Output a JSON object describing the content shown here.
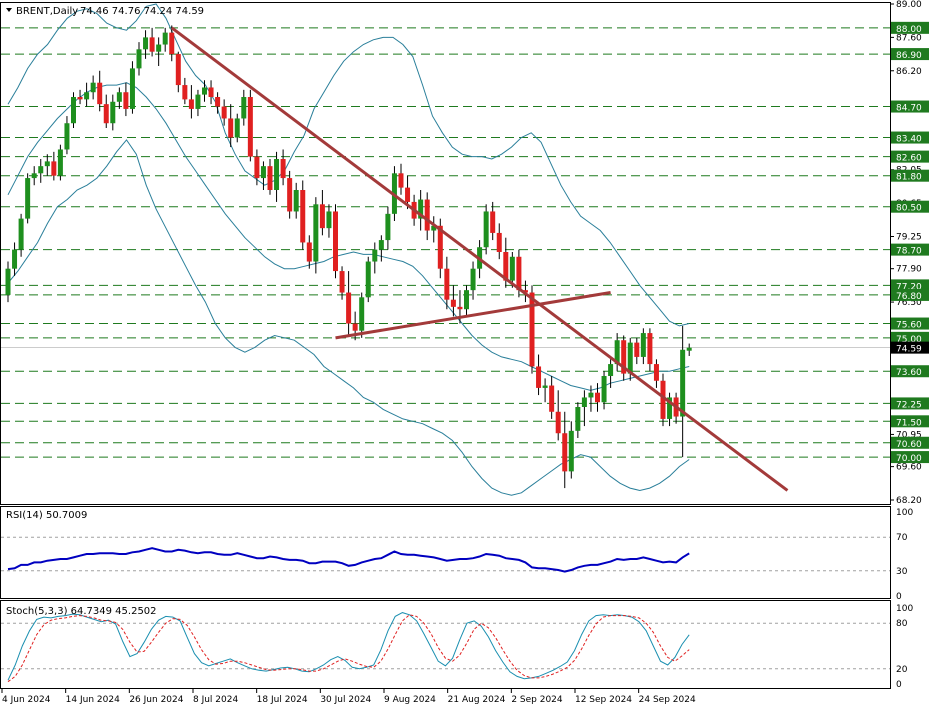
{
  "header": {
    "symbol": "BRENT,Daily",
    "ohlc": "74.46 74.76 74.24 74.59"
  },
  "rsi_label": "RSI(14) 50.7009",
  "stoch_label": "Stoch(5,3,3) 64.7349 45.2502",
  "colors": {
    "bull": "#1e8f1e",
    "bear": "#e02020",
    "bands": "#2a7f9a",
    "trend": "#a33a3a",
    "rsi": "#0000c0",
    "stoch_main": "#1a8fb0",
    "stoch_signal": "#e02020",
    "level": "#1f7a1f",
    "current_price_bg": "#000000"
  },
  "chart_data": [
    {
      "type": "candlestick",
      "symbol": "BRENT",
      "timeframe": "Daily",
      "y_ticks": [
        "89.00",
        "87.60",
        "86.20",
        "84.70",
        "83.40",
        "82.05",
        "80.65",
        "79.25",
        "77.90",
        "76.50",
        "75.10",
        "73.60",
        "72.25",
        "70.95",
        "69.60",
        "68.20"
      ],
      "ylim": [
        68.2,
        89.0
      ],
      "x_labels": [
        "4 Jun 2024",
        "14 Jun 2024",
        "26 Jun 2024",
        "8 Jul 2024",
        "18 Jul 2024",
        "30 Jul 2024",
        "9 Aug 2024",
        "21 Aug 2024",
        "2 Sep 2024",
        "12 Sep 2024",
        "24 Sep 2024"
      ],
      "levels": [
        88.0,
        86.9,
        84.7,
        83.4,
        82.6,
        81.8,
        80.5,
        78.7,
        77.2,
        76.8,
        75.6,
        75.0,
        73.6,
        72.25,
        71.5,
        70.6,
        70.0
      ],
      "current_price": 74.59,
      "candles": [
        [
          76.8,
          78.2,
          76.5,
          77.9
        ],
        [
          77.9,
          79.0,
          77.6,
          78.7
        ],
        [
          78.7,
          80.2,
          78.4,
          80.0
        ],
        [
          80.0,
          81.9,
          79.8,
          81.7
        ],
        [
          81.7,
          82.2,
          81.4,
          81.9
        ],
        [
          81.9,
          82.5,
          81.5,
          82.2
        ],
        [
          82.2,
          82.7,
          81.8,
          82.4
        ],
        [
          82.4,
          82.8,
          81.6,
          81.8
        ],
        [
          81.8,
          83.1,
          81.6,
          82.9
        ],
        [
          82.9,
          84.3,
          82.7,
          84.0
        ],
        [
          84.0,
          85.3,
          83.8,
          85.1
        ],
        [
          85.1,
          85.4,
          84.8,
          85.0
        ],
        [
          85.0,
          85.7,
          84.7,
          85.3
        ],
        [
          85.3,
          86.0,
          85.0,
          85.7
        ],
        [
          85.7,
          86.2,
          84.5,
          84.8
        ],
        [
          84.8,
          85.2,
          83.8,
          84.0
        ],
        [
          84.0,
          85.2,
          83.7,
          84.9
        ],
        [
          84.9,
          85.5,
          84.6,
          85.3
        ],
        [
          85.3,
          85.7,
          84.3,
          84.6
        ],
        [
          84.6,
          86.6,
          84.4,
          86.3
        ],
        [
          86.3,
          87.4,
          86.0,
          87.1
        ],
        [
          87.1,
          87.9,
          86.7,
          87.6
        ],
        [
          87.6,
          88.0,
          86.8,
          87.0
        ],
        [
          87.0,
          87.6,
          86.4,
          87.3
        ],
        [
          87.3,
          88.0,
          87.0,
          87.8
        ],
        [
          87.8,
          88.1,
          86.6,
          86.9
        ],
        [
          86.9,
          87.0,
          85.3,
          85.6
        ],
        [
          85.6,
          85.9,
          84.8,
          85.0
        ],
        [
          85.0,
          85.6,
          84.2,
          84.6
        ],
        [
          84.6,
          85.4,
          84.3,
          85.2
        ],
        [
          85.2,
          85.8,
          84.9,
          85.5
        ],
        [
          85.5,
          85.8,
          84.8,
          85.1
        ],
        [
          85.1,
          85.3,
          84.4,
          84.7
        ],
        [
          84.7,
          85.0,
          83.9,
          84.2
        ],
        [
          84.2,
          84.8,
          83.0,
          83.4
        ],
        [
          83.4,
          84.4,
          83.2,
          84.2
        ],
        [
          84.2,
          85.4,
          83.9,
          85.1
        ],
        [
          85.1,
          85.4,
          82.4,
          82.6
        ],
        [
          82.6,
          82.9,
          81.4,
          81.7
        ],
        [
          81.7,
          82.4,
          81.2,
          82.2
        ],
        [
          82.2,
          82.5,
          81.0,
          81.2
        ],
        [
          81.2,
          82.8,
          80.7,
          82.5
        ],
        [
          82.5,
          82.9,
          81.4,
          81.7
        ],
        [
          81.7,
          82.0,
          80.0,
          80.3
        ],
        [
          80.3,
          81.5,
          80.0,
          81.2
        ],
        [
          81.2,
          81.6,
          78.7,
          79.0
        ],
        [
          79.0,
          79.3,
          77.9,
          78.2
        ],
        [
          78.2,
          80.9,
          77.7,
          80.6
        ],
        [
          80.6,
          81.2,
          79.3,
          79.6
        ],
        [
          79.6,
          80.6,
          79.2,
          80.3
        ],
        [
          80.3,
          80.6,
          77.5,
          77.8
        ],
        [
          77.8,
          78.0,
          76.6,
          76.9
        ],
        [
          76.9,
          77.8,
          75.1,
          75.6
        ],
        [
          75.6,
          76.1,
          74.9,
          75.3
        ],
        [
          75.3,
          76.9,
          75.0,
          76.7
        ],
        [
          76.7,
          78.4,
          76.5,
          78.2
        ],
        [
          78.2,
          79.0,
          77.7,
          78.7
        ],
        [
          78.7,
          79.3,
          78.2,
          79.1
        ],
        [
          79.1,
          80.5,
          78.7,
          80.2
        ],
        [
          80.2,
          82.2,
          79.9,
          81.9
        ],
        [
          81.9,
          82.3,
          81.0,
          81.3
        ],
        [
          81.3,
          81.8,
          80.4,
          80.7
        ],
        [
          80.7,
          81.0,
          79.7,
          80.0
        ],
        [
          80.0,
          81.2,
          79.5,
          80.8
        ],
        [
          80.8,
          81.1,
          79.1,
          79.5
        ],
        [
          79.5,
          80.1,
          79.0,
          79.7
        ],
        [
          79.7,
          80.0,
          77.5,
          77.9
        ],
        [
          77.9,
          78.4,
          76.2,
          76.6
        ],
        [
          76.6,
          77.2,
          75.9,
          76.3
        ],
        [
          76.3,
          77.0,
          75.6,
          76.2
        ],
        [
          76.2,
          77.2,
          75.9,
          77.0
        ],
        [
          77.0,
          78.2,
          76.6,
          77.9
        ],
        [
          77.9,
          79.1,
          77.5,
          78.8
        ],
        [
          78.8,
          80.6,
          78.5,
          80.3
        ],
        [
          80.3,
          80.7,
          79.1,
          79.4
        ],
        [
          79.4,
          79.8,
          78.3,
          78.6
        ],
        [
          78.6,
          79.2,
          77.1,
          77.4
        ],
        [
          77.4,
          78.6,
          77.1,
          78.4
        ],
        [
          78.4,
          78.7,
          76.7,
          77.0
        ],
        [
          77.0,
          77.4,
          76.5,
          76.9
        ],
        [
          76.9,
          77.2,
          73.5,
          73.8
        ],
        [
          73.8,
          74.3,
          72.6,
          72.9
        ],
        [
          72.9,
          73.3,
          72.3,
          73.0
        ],
        [
          73.0,
          73.4,
          71.6,
          71.9
        ],
        [
          71.9,
          72.8,
          70.7,
          71.0
        ],
        [
          71.0,
          71.9,
          68.7,
          69.4
        ],
        [
          69.4,
          71.5,
          69.1,
          71.1
        ],
        [
          71.1,
          72.3,
          70.8,
          72.1
        ],
        [
          72.1,
          72.8,
          71.3,
          72.5
        ],
        [
          72.5,
          73.0,
          71.9,
          72.7
        ],
        [
          72.7,
          73.1,
          71.9,
          72.3
        ],
        [
          72.3,
          73.6,
          72.0,
          73.4
        ],
        [
          73.4,
          74.1,
          72.9,
          73.9
        ],
        [
          73.9,
          75.2,
          73.6,
          74.9
        ],
        [
          74.9,
          75.1,
          73.2,
          73.5
        ],
        [
          73.5,
          75.0,
          73.2,
          74.8
        ],
        [
          74.8,
          75.0,
          73.9,
          74.2
        ],
        [
          74.2,
          75.4,
          73.9,
          75.2
        ],
        [
          75.2,
          75.4,
          73.6,
          73.9
        ],
        [
          73.9,
          74.1,
          72.9,
          73.2
        ],
        [
          73.2,
          73.5,
          71.3,
          71.6
        ],
        [
          71.6,
          72.7,
          71.3,
          72.5
        ],
        [
          72.5,
          72.7,
          71.4,
          71.7
        ],
        [
          71.7,
          75.5,
          70.0,
          74.5
        ],
        [
          74.46,
          74.76,
          74.24,
          74.59
        ]
      ],
      "bollinger": {
        "upper": [
          84.8,
          85.5,
          86.3,
          86.9,
          87.3,
          87.9,
          88.4,
          88.7,
          88.8,
          88.6,
          88.2,
          88.0,
          87.9,
          88.3,
          88.9,
          89.0,
          88.4,
          87.5,
          86.6,
          86.0,
          85.6,
          84.9,
          83.6,
          82.7,
          82.0,
          81.7,
          81.4,
          81.6,
          82.0,
          82.8,
          83.5,
          84.6,
          85.3,
          86.0,
          86.6,
          87.0,
          87.3,
          87.5,
          87.6,
          87.6,
          87.3,
          86.8,
          85.6,
          84.3,
          83.6,
          83.0,
          82.7,
          82.6,
          82.6,
          82.5,
          82.7,
          83.0,
          83.4,
          83.6,
          83.2,
          82.3,
          81.4,
          80.7,
          80.1,
          79.8,
          79.5,
          79.0,
          78.4,
          77.8,
          77.2,
          76.7,
          76.2,
          75.7,
          75.5,
          75.6
        ],
        "middle": [
          81.0,
          81.8,
          82.6,
          83.2,
          83.7,
          84.2,
          84.6,
          85.0,
          85.3,
          85.5,
          85.6,
          85.6,
          85.7,
          85.5,
          85.1,
          84.6,
          84.0,
          83.3,
          82.6,
          82.0,
          81.4,
          80.8,
          80.2,
          79.7,
          79.2,
          78.8,
          78.4,
          78.1,
          77.9,
          77.9,
          78.0,
          78.1,
          78.2,
          78.4,
          78.5,
          78.6,
          78.5,
          78.5,
          78.4,
          78.3,
          78.2,
          78.0,
          77.6,
          77.1,
          76.6,
          76.1,
          75.6,
          75.1,
          74.7,
          74.4,
          74.2,
          74.1,
          74.0,
          73.8,
          73.6,
          73.4,
          73.2,
          73.0,
          72.9,
          72.8,
          72.9,
          73.1,
          73.2,
          73.3,
          73.4,
          73.5,
          73.6,
          73.6,
          73.7,
          73.8
        ],
        "lower": [
          77.3,
          77.8,
          78.4,
          79.0,
          79.8,
          80.5,
          80.8,
          81.2,
          81.4,
          81.7,
          82.2,
          82.8,
          83.3,
          82.7,
          81.4,
          80.4,
          79.6,
          78.8,
          78.0,
          77.2,
          76.5,
          75.6,
          75.0,
          74.6,
          74.4,
          74.6,
          74.9,
          75.1,
          75.0,
          74.9,
          74.6,
          74.3,
          73.8,
          73.5,
          73.2,
          72.9,
          72.5,
          72.3,
          72.0,
          71.8,
          71.6,
          71.5,
          71.4,
          71.2,
          71.0,
          70.7,
          70.2,
          69.6,
          69.1,
          68.7,
          68.5,
          68.4,
          68.5,
          68.8,
          69.1,
          69.4,
          69.7,
          69.9,
          70.1,
          70.0,
          69.6,
          69.2,
          68.9,
          68.7,
          68.6,
          68.7,
          68.9,
          69.2,
          69.6,
          69.9
        ]
      },
      "trendlines": [
        {
          "from": [
            25,
            88.0
          ],
          "to": [
            119,
            68.6
          ]
        },
        {
          "from": [
            50,
            75.0
          ],
          "to": [
            92,
            76.9
          ]
        }
      ]
    },
    {
      "type": "line",
      "name": "RSI(14)",
      "value": 50.7009,
      "y_ticks": [
        "100",
        "70",
        "30",
        "0"
      ],
      "ylim": [
        0,
        100
      ],
      "levels": [
        70,
        30
      ],
      "values": [
        32,
        33,
        37,
        37,
        40,
        40,
        42,
        43,
        44,
        44,
        46,
        48,
        50,
        50,
        51,
        51,
        51,
        50,
        50,
        52,
        53,
        55,
        57,
        55,
        53,
        53,
        55,
        54,
        52,
        51,
        52,
        52,
        50,
        49,
        49,
        51,
        49,
        47,
        45,
        45,
        47,
        46,
        44,
        43,
        43,
        42,
        39,
        39,
        41,
        41,
        41,
        39,
        36,
        37,
        40,
        42,
        44,
        45,
        49,
        53,
        50,
        49,
        49,
        48,
        47,
        46,
        44,
        42,
        43,
        44,
        44,
        45,
        47,
        50,
        49,
        48,
        45,
        44,
        43,
        40,
        34,
        33,
        33,
        32,
        31,
        29,
        31,
        34,
        36,
        37,
        37,
        39,
        41,
        44,
        43,
        44,
        44,
        46,
        44,
        42,
        40,
        41,
        40,
        46,
        50.7
      ]
    },
    {
      "type": "line",
      "name": "Stoch(5,3,3)",
      "main": 64.7349,
      "signal": 45.2502,
      "y_ticks": [
        "100",
        "80",
        "20",
        "0"
      ],
      "ylim": [
        0,
        100
      ],
      "levels": [
        80,
        20
      ],
      "main_values": [
        5,
        25,
        50,
        70,
        85,
        88,
        87,
        89,
        90,
        92,
        91,
        88,
        85,
        82,
        84,
        79,
        56,
        36,
        40,
        55,
        72,
        84,
        89,
        88,
        83,
        61,
        40,
        28,
        24,
        27,
        30,
        33,
        28,
        24,
        20,
        18,
        17,
        19,
        21,
        22,
        20,
        17,
        16,
        20,
        25,
        32,
        36,
        31,
        22,
        20,
        22,
        25,
        45,
        70,
        89,
        94,
        91,
        83,
        66,
        48,
        30,
        24,
        34,
        58,
        80,
        83,
        76,
        62,
        44,
        29,
        16,
        10,
        7,
        8,
        10,
        14,
        18,
        23,
        29,
        44,
        65,
        83,
        90,
        91,
        90,
        91,
        90,
        88,
        82,
        70,
        50,
        30,
        25,
        35,
        52,
        64.7
      ],
      "signal_values": [
        3,
        10,
        25,
        45,
        65,
        78,
        84,
        86,
        87,
        89,
        90,
        89,
        87,
        84,
        83,
        81,
        72,
        55,
        42,
        43,
        55,
        68,
        80,
        86,
        85,
        77,
        62,
        45,
        32,
        26,
        27,
        30,
        30,
        28,
        25,
        22,
        19,
        18,
        19,
        20,
        20,
        19,
        17,
        17,
        20,
        25,
        30,
        33,
        30,
        26,
        23,
        22,
        30,
        46,
        65,
        83,
        91,
        89,
        80,
        66,
        48,
        34,
        30,
        38,
        54,
        72,
        80,
        74,
        61,
        45,
        30,
        18,
        11,
        8,
        8,
        10,
        13,
        17,
        22,
        31,
        46,
        64,
        79,
        88,
        90,
        90,
        90,
        89,
        87,
        80,
        68,
        50,
        35,
        30,
        37,
        45.3
      ]
    }
  ]
}
